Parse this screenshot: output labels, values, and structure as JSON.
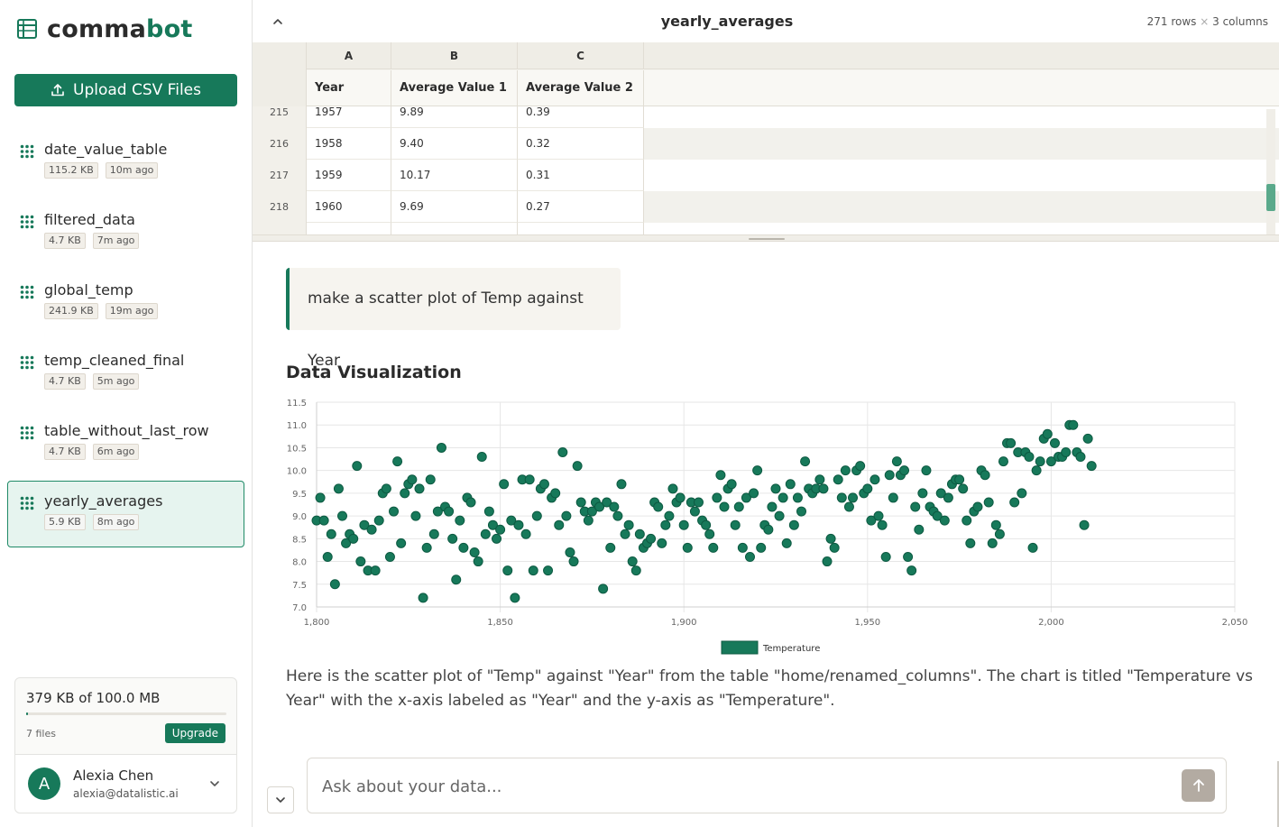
{
  "brand": {
    "name_a": "comma",
    "name_b": "bot",
    "accent": "#17795a"
  },
  "sidebar": {
    "upload_label": "Upload CSV Files",
    "files": [
      {
        "name": "date_value_table",
        "size": "115.2 KB",
        "age": "10m ago",
        "active": false
      },
      {
        "name": "filtered_data",
        "size": "4.7 KB",
        "age": "7m ago",
        "active": false
      },
      {
        "name": "global_temp",
        "size": "241.9 KB",
        "age": "19m ago",
        "active": false
      },
      {
        "name": "temp_cleaned_final",
        "size": "4.7 KB",
        "age": "5m ago",
        "active": false
      },
      {
        "name": "table_without_last_row",
        "size": "4.7 KB",
        "age": "6m ago",
        "active": false
      },
      {
        "name": "yearly_averages",
        "size": "5.9 KB",
        "age": "8m ago",
        "active": true
      }
    ],
    "storage": {
      "used_label": "379 KB of 100.0 MB",
      "used_fraction": 0.0037,
      "files_count": "7 files",
      "upgrade_label": "Upgrade"
    },
    "user": {
      "initial": "A",
      "name": "Alexia Chen",
      "email": "alexia@datalistic.ai"
    }
  },
  "table": {
    "title": "yearly_averages",
    "rows_label": "271 rows",
    "sep": "×",
    "cols_label": "3 columns",
    "col_letters": [
      "A",
      "B",
      "C"
    ],
    "col_fields": [
      "Year",
      "Average Value 1",
      "Average Value 2"
    ],
    "rows": [
      {
        "num": "215",
        "cells": [
          "1957",
          "9.89",
          "0.39"
        ]
      },
      {
        "num": "216",
        "cells": [
          "1958",
          "9.40",
          "0.32"
        ]
      },
      {
        "num": "217",
        "cells": [
          "1959",
          "10.17",
          "0.31"
        ]
      },
      {
        "num": "218",
        "cells": [
          "1960",
          "9.69",
          "0.27"
        ]
      }
    ]
  },
  "chat": {
    "user_message": "make a scatter plot of Temp against Year",
    "viz_title": "Data Visualization",
    "answer": "Here is the scatter plot of \"Temp\" against \"Year\" from the table \"home/renamed_columns\". The chart is titled \"Temperature vs Year\" with the x-axis labeled as \"Year\" and the y-axis as \"Temperature\".",
    "input_placeholder": "Ask about your data..."
  },
  "chart_data": {
    "type": "scatter",
    "xlim": [
      1800,
      2050
    ],
    "ylim": [
      7.0,
      11.5
    ],
    "x_ticks": [
      "1,800",
      "1,850",
      "1,900",
      "1,950",
      "2,000",
      "2,050"
    ],
    "y_ticks": [
      "7.0",
      "7.5",
      "8.0",
      "8.5",
      "9.0",
      "9.5",
      "10.0",
      "10.5",
      "11.0",
      "11.5"
    ],
    "grid": true,
    "legend_position": "bottom",
    "series": [
      {
        "name": "Temperature",
        "color": "#17795a",
        "points": [
          [
            1800,
            8.9
          ],
          [
            1801,
            9.4
          ],
          [
            1802,
            8.9
          ],
          [
            1803,
            8.1
          ],
          [
            1804,
            8.6
          ],
          [
            1805,
            7.5
          ],
          [
            1806,
            9.6
          ],
          [
            1807,
            9.0
          ],
          [
            1808,
            8.4
          ],
          [
            1809,
            8.6
          ],
          [
            1810,
            8.5
          ],
          [
            1811,
            10.1
          ],
          [
            1812,
            8.0
          ],
          [
            1813,
            8.8
          ],
          [
            1814,
            7.8
          ],
          [
            1815,
            8.7
          ],
          [
            1816,
            7.8
          ],
          [
            1817,
            8.9
          ],
          [
            1818,
            9.5
          ],
          [
            1819,
            9.6
          ],
          [
            1820,
            8.1
          ],
          [
            1821,
            9.1
          ],
          [
            1822,
            10.2
          ],
          [
            1823,
            8.4
          ],
          [
            1824,
            9.5
          ],
          [
            1825,
            9.7
          ],
          [
            1826,
            9.8
          ],
          [
            1827,
            9.0
          ],
          [
            1828,
            9.6
          ],
          [
            1829,
            7.2
          ],
          [
            1830,
            8.3
          ],
          [
            1831,
            9.8
          ],
          [
            1832,
            8.6
          ],
          [
            1833,
            9.1
          ],
          [
            1834,
            10.5
          ],
          [
            1835,
            9.2
          ],
          [
            1836,
            9.1
          ],
          [
            1837,
            8.5
          ],
          [
            1838,
            7.6
          ],
          [
            1839,
            8.9
          ],
          [
            1840,
            8.3
          ],
          [
            1841,
            9.4
          ],
          [
            1842,
            9.3
          ],
          [
            1843,
            8.2
          ],
          [
            1844,
            8.0
          ],
          [
            1845,
            10.3
          ],
          [
            1846,
            8.6
          ],
          [
            1847,
            9.1
          ],
          [
            1848,
            8.8
          ],
          [
            1849,
            8.5
          ],
          [
            1850,
            8.7
          ],
          [
            1851,
            9.7
          ],
          [
            1852,
            7.8
          ],
          [
            1853,
            8.9
          ],
          [
            1854,
            7.2
          ],
          [
            1855,
            8.8
          ],
          [
            1856,
            9.8
          ],
          [
            1857,
            8.6
          ],
          [
            1858,
            9.8
          ],
          [
            1859,
            7.8
          ],
          [
            1860,
            9.0
          ],
          [
            1861,
            9.6
          ],
          [
            1862,
            9.7
          ],
          [
            1863,
            7.8
          ],
          [
            1864,
            9.4
          ],
          [
            1865,
            9.5
          ],
          [
            1866,
            8.8
          ],
          [
            1867,
            10.4
          ],
          [
            1868,
            9.0
          ],
          [
            1869,
            8.2
          ],
          [
            1870,
            8.0
          ],
          [
            1871,
            10.1
          ],
          [
            1872,
            9.3
          ],
          [
            1873,
            9.1
          ],
          [
            1874,
            8.9
          ],
          [
            1875,
            9.1
          ],
          [
            1876,
            9.3
          ],
          [
            1877,
            9.2
          ],
          [
            1878,
            7.4
          ],
          [
            1879,
            9.3
          ],
          [
            1880,
            8.3
          ],
          [
            1881,
            9.2
          ],
          [
            1882,
            9.0
          ],
          [
            1883,
            9.7
          ],
          [
            1884,
            8.6
          ],
          [
            1885,
            8.8
          ],
          [
            1886,
            8.0
          ],
          [
            1887,
            7.8
          ],
          [
            1888,
            8.6
          ],
          [
            1889,
            8.3
          ],
          [
            1890,
            8.4
          ],
          [
            1891,
            8.5
          ],
          [
            1892,
            9.3
          ],
          [
            1893,
            9.2
          ],
          [
            1894,
            8.4
          ],
          [
            1895,
            8.8
          ],
          [
            1896,
            9.0
          ],
          [
            1897,
            9.6
          ],
          [
            1898,
            9.3
          ],
          [
            1899,
            9.4
          ],
          [
            1900,
            8.8
          ],
          [
            1901,
            8.3
          ],
          [
            1902,
            9.3
          ],
          [
            1903,
            9.1
          ],
          [
            1904,
            9.3
          ],
          [
            1905,
            8.9
          ],
          [
            1906,
            8.8
          ],
          [
            1907,
            8.6
          ],
          [
            1908,
            8.3
          ],
          [
            1909,
            9.4
          ],
          [
            1910,
            9.9
          ],
          [
            1911,
            9.2
          ],
          [
            1912,
            9.6
          ],
          [
            1913,
            9.7
          ],
          [
            1914,
            8.8
          ],
          [
            1915,
            9.2
          ],
          [
            1916,
            8.3
          ],
          [
            1917,
            9.4
          ],
          [
            1918,
            8.1
          ],
          [
            1919,
            9.5
          ],
          [
            1920,
            10.0
          ],
          [
            1921,
            8.3
          ],
          [
            1922,
            8.8
          ],
          [
            1923,
            8.7
          ],
          [
            1924,
            9.2
          ],
          [
            1925,
            9.6
          ],
          [
            1926,
            9.0
          ],
          [
            1927,
            9.4
          ],
          [
            1928,
            8.4
          ],
          [
            1929,
            9.7
          ],
          [
            1930,
            8.8
          ],
          [
            1931,
            9.4
          ],
          [
            1932,
            9.1
          ],
          [
            1933,
            10.2
          ],
          [
            1934,
            9.6
          ],
          [
            1935,
            9.5
          ],
          [
            1936,
            9.6
          ],
          [
            1937,
            9.8
          ],
          [
            1938,
            9.6
          ],
          [
            1939,
            8.0
          ],
          [
            1940,
            8.5
          ],
          [
            1941,
            8.3
          ],
          [
            1942,
            9.8
          ],
          [
            1943,
            9.4
          ],
          [
            1944,
            10.0
          ],
          [
            1945,
            9.2
          ],
          [
            1946,
            9.4
          ],
          [
            1947,
            10.0
          ],
          [
            1948,
            10.1
          ],
          [
            1949,
            9.5
          ],
          [
            1950,
            9.6
          ],
          [
            1951,
            8.9
          ],
          [
            1952,
            9.8
          ],
          [
            1953,
            9.0
          ],
          [
            1954,
            8.8
          ],
          [
            1955,
            8.1
          ],
          [
            1956,
            9.9
          ],
          [
            1957,
            9.4
          ],
          [
            1958,
            10.2
          ],
          [
            1959,
            9.9
          ],
          [
            1960,
            10.0
          ],
          [
            1961,
            8.1
          ],
          [
            1962,
            7.8
          ],
          [
            1963,
            9.2
          ],
          [
            1964,
            8.7
          ],
          [
            1965,
            9.5
          ],
          [
            1966,
            10.0
          ],
          [
            1967,
            9.2
          ],
          [
            1968,
            9.1
          ],
          [
            1969,
            9.0
          ],
          [
            1970,
            9.5
          ],
          [
            1971,
            8.9
          ],
          [
            1972,
            9.4
          ],
          [
            1973,
            9.7
          ],
          [
            1974,
            9.8
          ],
          [
            1975,
            9.8
          ],
          [
            1976,
            9.6
          ],
          [
            1977,
            8.9
          ],
          [
            1978,
            8.4
          ],
          [
            1979,
            9.1
          ],
          [
            1980,
            9.2
          ],
          [
            1981,
            10.0
          ],
          [
            1982,
            9.9
          ],
          [
            1983,
            9.3
          ],
          [
            1984,
            8.4
          ],
          [
            1985,
            8.8
          ],
          [
            1986,
            8.6
          ],
          [
            1987,
            10.2
          ],
          [
            1988,
            10.6
          ],
          [
            1989,
            10.6
          ],
          [
            1990,
            9.3
          ],
          [
            1991,
            10.4
          ],
          [
            1992,
            9.5
          ],
          [
            1993,
            10.4
          ],
          [
            1994,
            10.3
          ],
          [
            1995,
            8.3
          ],
          [
            1996,
            10.0
          ],
          [
            1997,
            10.2
          ],
          [
            1998,
            10.7
          ],
          [
            1999,
            10.8
          ],
          [
            2000,
            10.2
          ],
          [
            2001,
            10.6
          ],
          [
            2002,
            10.3
          ],
          [
            2003,
            10.3
          ],
          [
            2004,
            10.4
          ],
          [
            2005,
            11.0
          ],
          [
            2006,
            11.0
          ],
          [
            2007,
            10.4
          ],
          [
            2008,
            10.3
          ],
          [
            2009,
            8.8
          ],
          [
            2010,
            10.7
          ],
          [
            2011,
            10.1
          ]
        ]
      }
    ]
  }
}
